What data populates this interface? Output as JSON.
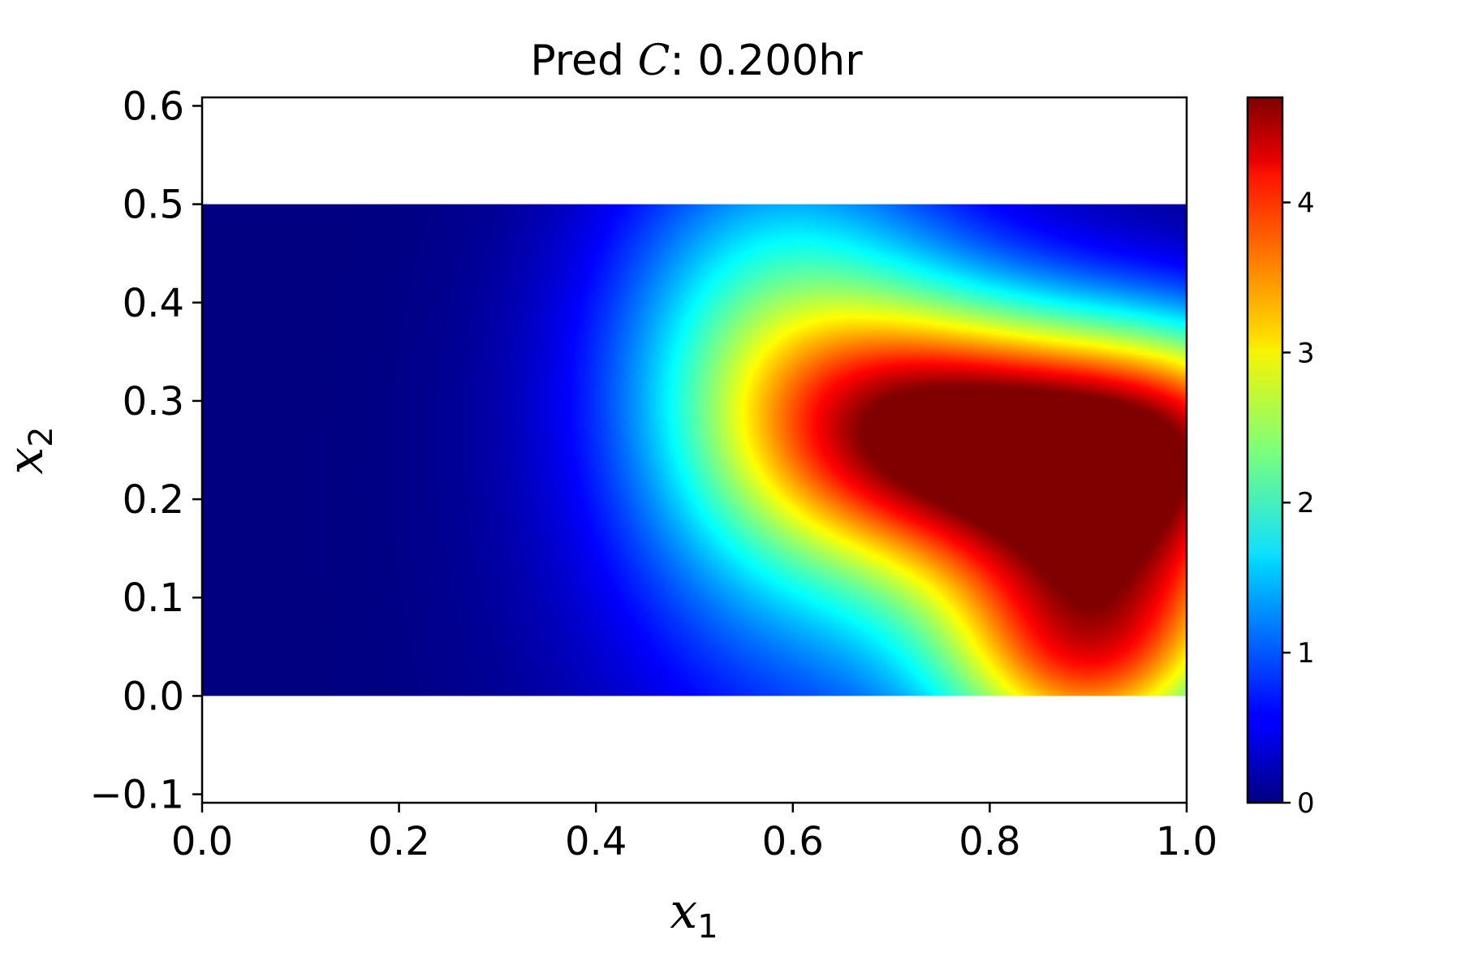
{
  "chart_data": {
    "type": "heatmap",
    "title": {
      "prefix": "Pred ",
      "variable": "C",
      "suffix": ":  0.200hr"
    },
    "xlabel": {
      "base": "x",
      "sub": "1"
    },
    "ylabel": {
      "base": "x",
      "sub": "2"
    },
    "xlim": [
      0.0,
      1.0
    ],
    "ylim": [
      -0.1086,
      0.6086
    ],
    "x_ticks": [
      0.0,
      0.2,
      0.4,
      0.6,
      0.8,
      1.0
    ],
    "x_tick_labels": [
      "0.0",
      "0.2",
      "0.4",
      "0.6",
      "0.8",
      "1.0"
    ],
    "y_ticks": [
      -0.1,
      0.0,
      0.1,
      0.2,
      0.3,
      0.4,
      0.5,
      0.6
    ],
    "y_tick_labels": [
      "−0.1",
      "0.0",
      "0.1",
      "0.2",
      "0.3",
      "0.4",
      "0.5",
      "0.6"
    ],
    "domain": {
      "x": [
        0.0,
        1.0
      ],
      "y": [
        0.0,
        0.5
      ]
    },
    "colormap": "jet",
    "colorbar": {
      "range": [
        0.0,
        4.7
      ],
      "ticks": [
        0,
        1,
        2,
        3,
        4
      ],
      "tick_labels": [
        "0",
        "1",
        "2",
        "3",
        "4"
      ]
    },
    "field_peak": {
      "x": 0.93,
      "y": 0.16,
      "value": 4.7
    },
    "grid": false,
    "legend": "none"
  }
}
